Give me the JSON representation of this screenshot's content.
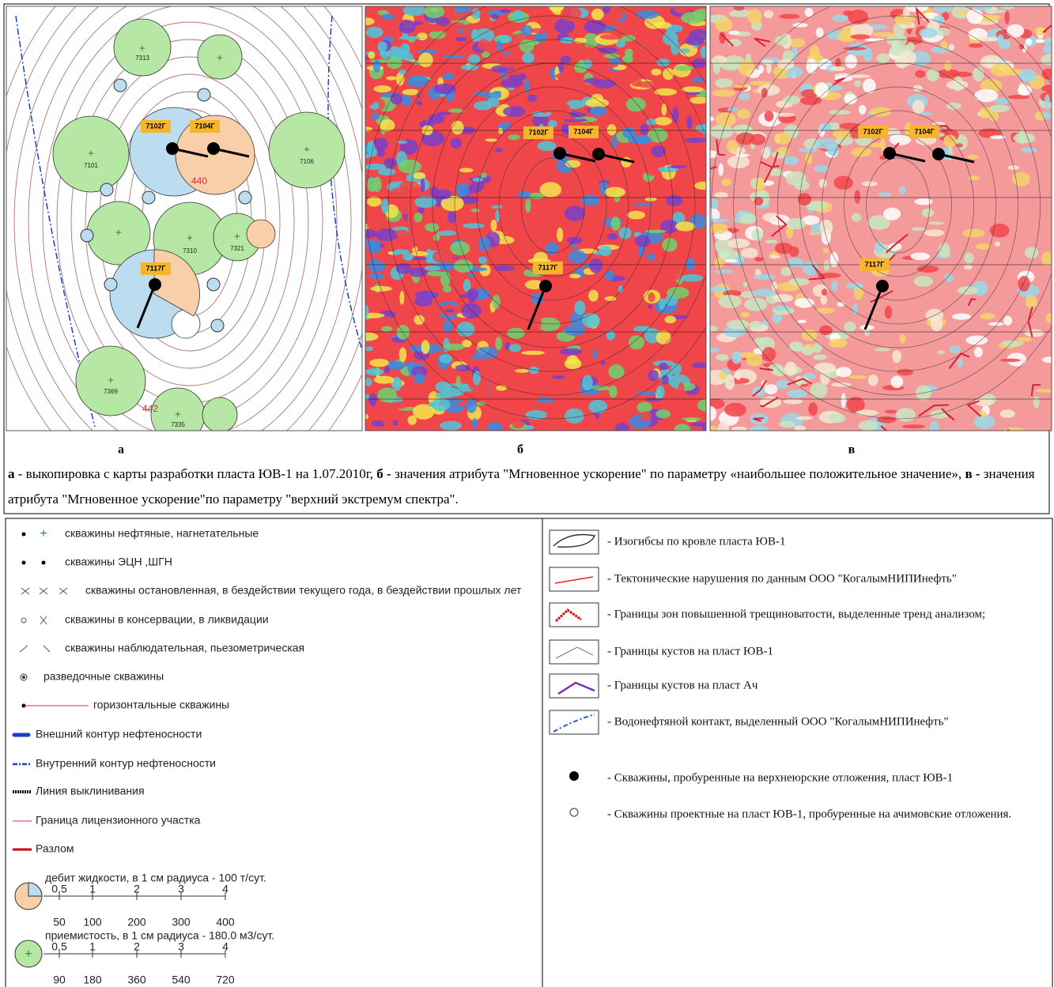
{
  "figure": {
    "panels": [
      {
        "label": "а",
        "wells": [
          "7102Г",
          "7104Г",
          "7117Г"
        ],
        "numbers": [
          "440",
          "442"
        ],
        "well_numbers": [
          "7101",
          "7106",
          "7310",
          "7321",
          "7313",
          "7369",
          "7335"
        ]
      },
      {
        "label": "б",
        "wells": [
          "7102Г",
          "7104Г",
          "7117Г"
        ]
      },
      {
        "label": "в",
        "wells": [
          "7102Г",
          "7104Г",
          "7117Г"
        ]
      }
    ],
    "caption": [
      {
        "letter": "а",
        "text": "- выкопировка с карты разработки пласта ЮВ-1 на 1.07.2010г,"
      },
      {
        "letter": "б -",
        "text": "значения атрибута \"Мгновенное ускорение\" по параметру «наибольшее положительное значение»,"
      },
      {
        "letter": "в -",
        "text": "значения атрибута \"Мгновенное ускорение\"по параметру \"верхний экстремум спектра\"."
      }
    ]
  },
  "legend": {
    "left": [
      "скважины нефтяные, нагнетательные",
      "скважины ЭЦН ,ШГН",
      "скважины остановленная, в бездействии текущего года, в бездействии прошлых лет",
      "скважины в консервации, в ликвидации",
      "скважины наблюдательная, пьезометрическая",
      "разведочные скважины",
      "горизонтальные скважины",
      "Внешний контур нефтеносности",
      "Внутренний контур нефтеносности",
      "Линия выклинивания",
      "Граница лицензионного участка",
      "Разлом"
    ],
    "debit": {
      "title": "дебит жидкости, в 1 см радиуса - 100 т/сут.",
      "ticks": [
        "0.5",
        "1",
        "2",
        "3",
        "4"
      ],
      "values": [
        "50",
        "100",
        "200",
        "300",
        "400"
      ]
    },
    "injectivity": {
      "title": "приемистость, в 1 см радиуса - 180.0 м3/сут.",
      "ticks": [
        "0.5",
        "1",
        "2",
        "3",
        "4"
      ],
      "values": [
        "90",
        "180",
        "360",
        "540",
        "720"
      ]
    },
    "right": [
      "- Изогибсы по кровле пласта ЮВ-1",
      "- Тектонические нарушения по данным ООО \"КогалымНИПИнефть\"",
      "- Границы зон повышенной трещиноватости, выделенные тренд анализом;",
      "- Границы кустов на пласт ЮВ-1",
      "- Границы кустов на пласт Ач",
      "- Водонефтяной контакт, выделенный ООО \"КогалымНИПИнефть\"",
      "- Скважины, пробуренные на верхнеюрские отложения, пласт ЮВ-1",
      "- Скважины проектные на пласт ЮВ-1, пробуренные на ачимовские отложения."
    ]
  }
}
